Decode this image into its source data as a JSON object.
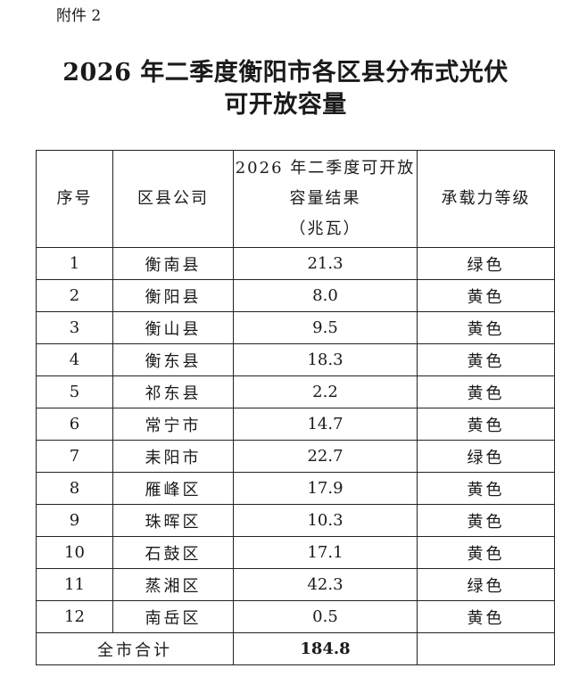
{
  "attachment_label": "附件 2",
  "title_line1": "2026 年二季度衡阳市各区县分布式光伏",
  "title_line2": "可开放容量",
  "table": {
    "headers": [
      "序号",
      "区县公司",
      "2026 年二季度可开放容量结果（兆瓦）",
      "承载力等级"
    ],
    "header_capacity_lines": [
      "2026 年二季度可开放",
      "容量结果",
      "（兆瓦）"
    ],
    "rows": [
      {
        "no": "1",
        "county": "衡南县",
        "capacity": "21.3",
        "level": "绿色"
      },
      {
        "no": "2",
        "county": "衡阳县",
        "capacity": "8.0",
        "level": "黄色"
      },
      {
        "no": "3",
        "county": "衡山县",
        "capacity": "9.5",
        "level": "黄色"
      },
      {
        "no": "4",
        "county": "衡东县",
        "capacity": "18.3",
        "level": "黄色"
      },
      {
        "no": "5",
        "county": "祁东县",
        "capacity": "2.2",
        "level": "黄色"
      },
      {
        "no": "6",
        "county": "常宁市",
        "capacity": "14.7",
        "level": "黄色"
      },
      {
        "no": "7",
        "county": "耒阳市",
        "capacity": "22.7",
        "level": "绿色"
      },
      {
        "no": "8",
        "county": "雁峰区",
        "capacity": "17.9",
        "level": "黄色"
      },
      {
        "no": "9",
        "county": "珠晖区",
        "capacity": "10.3",
        "level": "黄色"
      },
      {
        "no": "10",
        "county": "石鼓区",
        "capacity": "17.1",
        "level": "黄色"
      },
      {
        "no": "11",
        "county": "蒸湘区",
        "capacity": "42.3",
        "level": "绿色"
      },
      {
        "no": "12",
        "county": "南岳区",
        "capacity": "0.5",
        "level": "黄色"
      }
    ],
    "total_label": "全市合计",
    "total_value": "184.8"
  }
}
